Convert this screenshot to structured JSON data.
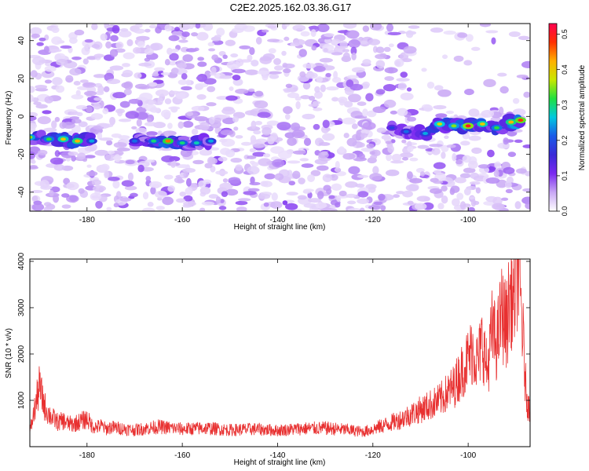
{
  "title": "C2E2.2025.162.03.36.G17",
  "colors": {
    "snr_line": "#e83030",
    "spectrogram_low": "#d8b8f0",
    "spectrogram_mid": "#6a1ee0",
    "background": "#ffffff"
  },
  "chart_data": [
    {
      "type": "heatmap",
      "title": "C2E2.2025.162.03.36.G17",
      "xlabel": "Height of straight line (km)",
      "ylabel": "Frequency (Hz)",
      "xlim": [
        -192,
        -87
      ],
      "ylim": [
        -50,
        49
      ],
      "x_ticks": [
        -180,
        -160,
        -140,
        -120,
        -100
      ],
      "x_tick_labels": [
        "-180",
        "-160",
        "-140",
        "-120",
        "-100"
      ],
      "y_ticks": [
        -40,
        -20,
        0,
        20,
        40
      ],
      "y_tick_labels": [
        "-40",
        "-20",
        "0",
        "20",
        "40"
      ],
      "colorbar": {
        "label": "Normalized spectral amplitude",
        "range": [
          0,
          0.53
        ],
        "ticks": [
          0.0,
          0.1,
          0.2,
          0.3,
          0.4,
          0.5
        ],
        "tick_labels": [
          "0.0",
          "0.1",
          "0.2",
          "0.3",
          "0.4",
          "0.5"
        ],
        "colormap": [
          "#ffffff",
          "#c9a8f5",
          "#7a2af0",
          "#3a2ad8",
          "#1a5ae8",
          "#00c8e0",
          "#20e040",
          "#c8e800",
          "#ffb000",
          "#ff3000",
          "#ff0050"
        ]
      },
      "signal_track": [
        {
          "x": -192,
          "y": -11,
          "amp": 0.35
        },
        {
          "x": -188,
          "y": -12,
          "amp": 0.32
        },
        {
          "x": -185,
          "y": -12,
          "amp": 0.4
        },
        {
          "x": -182,
          "y": -13,
          "amp": 0.42
        },
        {
          "x": -179,
          "y": -13,
          "amp": 0.25
        },
        {
          "x": -170,
          "y": -13,
          "amp": 0.22
        },
        {
          "x": -166,
          "y": -13,
          "amp": 0.3
        },
        {
          "x": -163,
          "y": -13,
          "amp": 0.45
        },
        {
          "x": -160,
          "y": -14,
          "amp": 0.3
        },
        {
          "x": -157,
          "y": -14,
          "amp": 0.28
        },
        {
          "x": -154,
          "y": -13,
          "amp": 0.25
        },
        {
          "x": -116,
          "y": -6,
          "amp": 0.18
        },
        {
          "x": -113,
          "y": -8,
          "amp": 0.22
        },
        {
          "x": -109,
          "y": -9,
          "amp": 0.25
        },
        {
          "x": -106,
          "y": -4,
          "amp": 0.38
        },
        {
          "x": -103,
          "y": -5,
          "amp": 0.35
        },
        {
          "x": -100,
          "y": -5,
          "amp": 0.5
        },
        {
          "x": -97,
          "y": -4,
          "amp": 0.4
        },
        {
          "x": -94,
          "y": -6,
          "amp": 0.32
        },
        {
          "x": -91,
          "y": -3,
          "amp": 0.42
        },
        {
          "x": -89,
          "y": -2,
          "amp": 0.48
        }
      ]
    },
    {
      "type": "line",
      "title": "",
      "xlabel": "Height of straight line (km)",
      "ylabel": "SNR (10 * v/v)",
      "xlim": [
        -192,
        -87
      ],
      "ylim": [
        0,
        4050
      ],
      "x_ticks": [
        -180,
        -160,
        -140,
        -120,
        -100
      ],
      "x_tick_labels": [
        "-180",
        "-160",
        "-140",
        "-120",
        "-100"
      ],
      "y_ticks": [
        1000,
        2000,
        3000,
        4000
      ],
      "y_tick_labels": [
        "1000",
        "2000",
        "3000",
        "4000"
      ],
      "series": [
        {
          "x": [
            -192,
            -191,
            -190,
            -189,
            -188,
            -187,
            -186,
            -185,
            -184,
            -183,
            -182,
            -181,
            -180,
            -179,
            -178,
            -177,
            -176,
            -175,
            -170,
            -165,
            -160,
            -155,
            -150,
            -145,
            -140,
            -135,
            -130,
            -125,
            -122,
            -120,
            -118,
            -116,
            -114,
            -112,
            -110,
            -108,
            -106,
            -104,
            -103,
            -102,
            -101,
            -100,
            -99,
            -98,
            -97,
            -96,
            -95,
            -94,
            -93,
            -92,
            -91,
            -90.5,
            -90,
            -89.5,
            -89,
            -88.5,
            -88,
            -87.5,
            -87
          ],
          "y": [
            300,
            800,
            1300,
            900,
            700,
            600,
            520,
            560,
            500,
            480,
            520,
            560,
            600,
            460,
            420,
            450,
            380,
            420,
            360,
            430,
            380,
            400,
            360,
            380,
            350,
            390,
            400,
            360,
            320,
            380,
            450,
            520,
            600,
            700,
            800,
            900,
            1000,
            1200,
            1300,
            1500,
            1700,
            1900,
            2100,
            1800,
            2300,
            1600,
            2500,
            2200,
            2900,
            2600,
            3400,
            3000,
            3700,
            4050,
            3200,
            2400,
            1400,
            900,
            800
          ]
        }
      ]
    }
  ]
}
